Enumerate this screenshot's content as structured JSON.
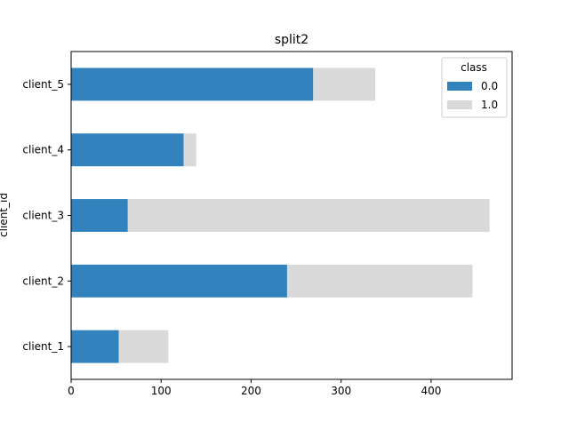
{
  "chart_data": {
    "type": "bar",
    "orientation": "horizontal",
    "stacked": true,
    "title": "split2",
    "xlabel": "",
    "ylabel": "client_id",
    "categories": [
      "client_1",
      "client_2",
      "client_3",
      "client_4",
      "client_5"
    ],
    "series": [
      {
        "name": "0.0",
        "values": [
          53,
          240,
          63,
          125,
          269
        ],
        "color": "#3182bd"
      },
      {
        "name": "1.0",
        "values": [
          55,
          206,
          402,
          14,
          69
        ],
        "color": "#d9d9d9"
      }
    ],
    "xlim": [
      0,
      490
    ],
    "xticks": [
      0,
      100,
      200,
      300,
      400
    ],
    "grid": false,
    "legend": {
      "title": "class",
      "placement": "top-right"
    }
  }
}
